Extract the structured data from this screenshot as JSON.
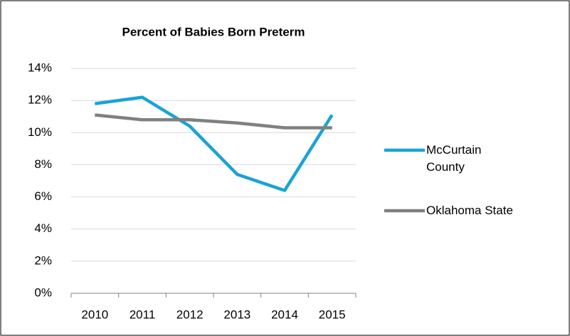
{
  "chart_data": {
    "type": "line",
    "title": "Percent of Babies Born Preterm",
    "categories": [
      "2010",
      "2011",
      "2012",
      "2013",
      "2014",
      "2015"
    ],
    "series": [
      {
        "name": "McCurtain County",
        "color": "#1aa3d6",
        "values": [
          11.8,
          12.2,
          10.4,
          7.4,
          6.4,
          11.1
        ]
      },
      {
        "name": "Oklahoma State",
        "color": "#808080",
        "values": [
          11.1,
          10.8,
          10.8,
          10.6,
          10.3,
          10.3
        ]
      }
    ],
    "ylim": [
      0,
      14
    ],
    "yticks": [
      {
        "value": 0,
        "label": "0%"
      },
      {
        "value": 2,
        "label": "2%"
      },
      {
        "value": 4,
        "label": "4%"
      },
      {
        "value": 6,
        "label": "6%"
      },
      {
        "value": 8,
        "label": "8%"
      },
      {
        "value": 10,
        "label": "10%"
      },
      {
        "value": 12,
        "label": "12%"
      },
      {
        "value": 14,
        "label": "14%"
      }
    ],
    "grid": true,
    "legend": "right"
  }
}
